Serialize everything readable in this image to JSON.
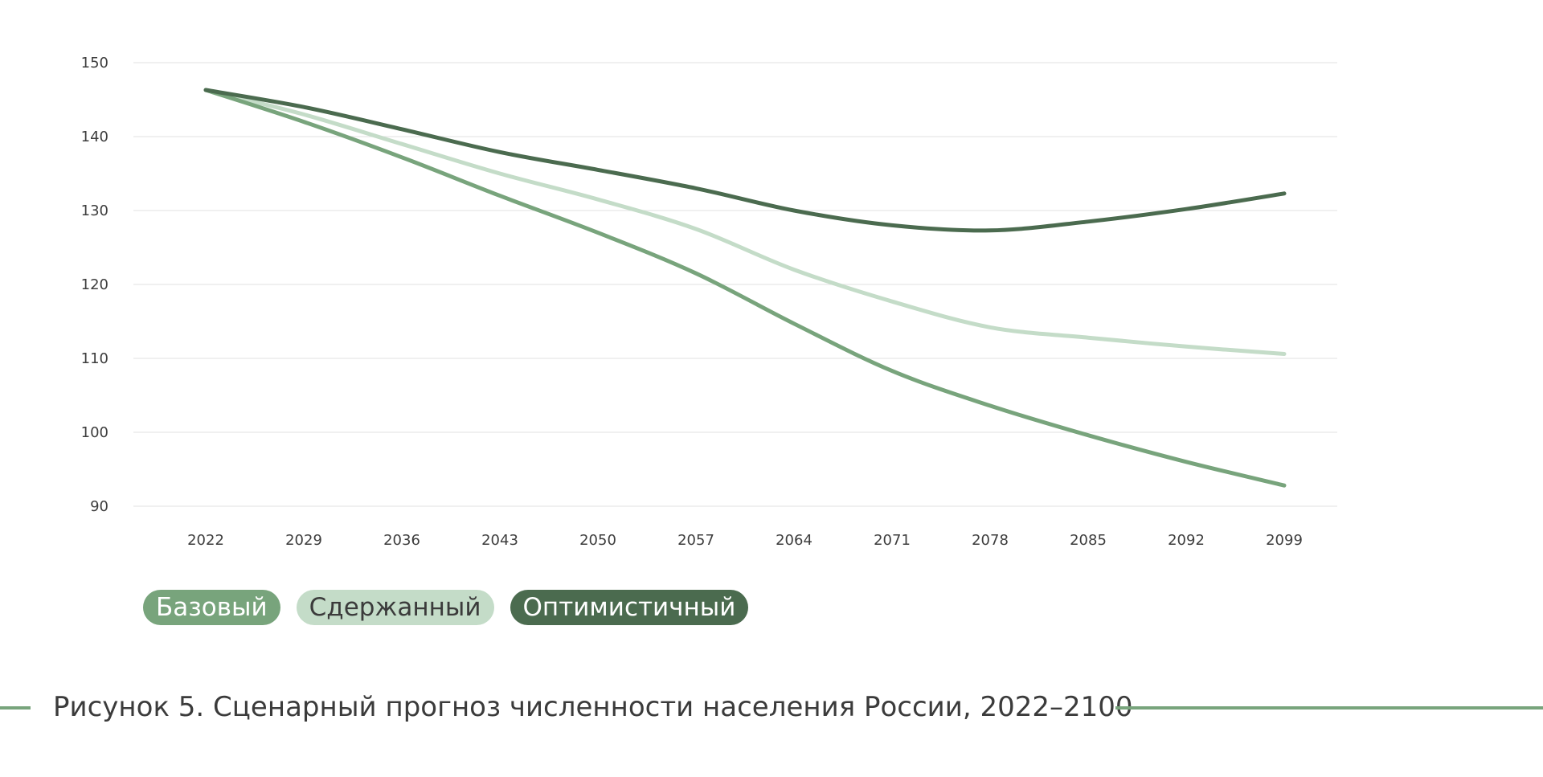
{
  "colors": {
    "base": "#78a47c",
    "restrained": "#c4dcc8",
    "optimistic": "#4b6b4f",
    "grid": "#e6e6e6",
    "rule": "#78a47c"
  },
  "legend": [
    {
      "label": "Базовый",
      "series": "base",
      "text_color": "#ffffff"
    },
    {
      "label": "Сдержанный",
      "series": "restrained",
      "text_color": "#3b3b3b"
    },
    {
      "label": "Оптимистичный",
      "series": "optimistic",
      "text_color": "#ffffff"
    }
  ],
  "caption": "Рисунок 5. Сценарный прогноз численности населения России, 2022–2100",
  "chart_data": {
    "type": "line",
    "title": "",
    "xlabel": "",
    "ylabel": "",
    "x": [
      2022,
      2029,
      2036,
      2043,
      2050,
      2057,
      2064,
      2071,
      2078,
      2085,
      2092,
      2099
    ],
    "x_tick_labels": [
      "2022",
      "2029",
      "2036",
      "2043",
      "2050",
      "2057",
      "2064",
      "2071",
      "2078",
      "2085",
      "2092",
      "2099"
    ],
    "y_ticks": [
      90,
      100,
      110,
      120,
      130,
      140,
      150
    ],
    "ylim": [
      90,
      150
    ],
    "grid": true,
    "legend_position": "bottom-left",
    "series": [
      {
        "name": "Базовый",
        "key": "base",
        "values": [
          146.3,
          142.0,
          137.2,
          132.0,
          127.0,
          121.5,
          114.7,
          108.3,
          103.6,
          99.6,
          96.0,
          92.8
        ]
      },
      {
        "name": "Сдержанный",
        "key": "restrained",
        "values": [
          146.3,
          143.0,
          139.0,
          135.0,
          131.5,
          127.5,
          122.0,
          117.7,
          114.2,
          112.8,
          111.6,
          110.6
        ]
      },
      {
        "name": "Оптимистичный",
        "key": "optimistic",
        "values": [
          146.3,
          144.0,
          141.0,
          137.9,
          135.5,
          133.0,
          130.0,
          128.0,
          127.3,
          128.5,
          130.2,
          132.3
        ]
      }
    ]
  }
}
